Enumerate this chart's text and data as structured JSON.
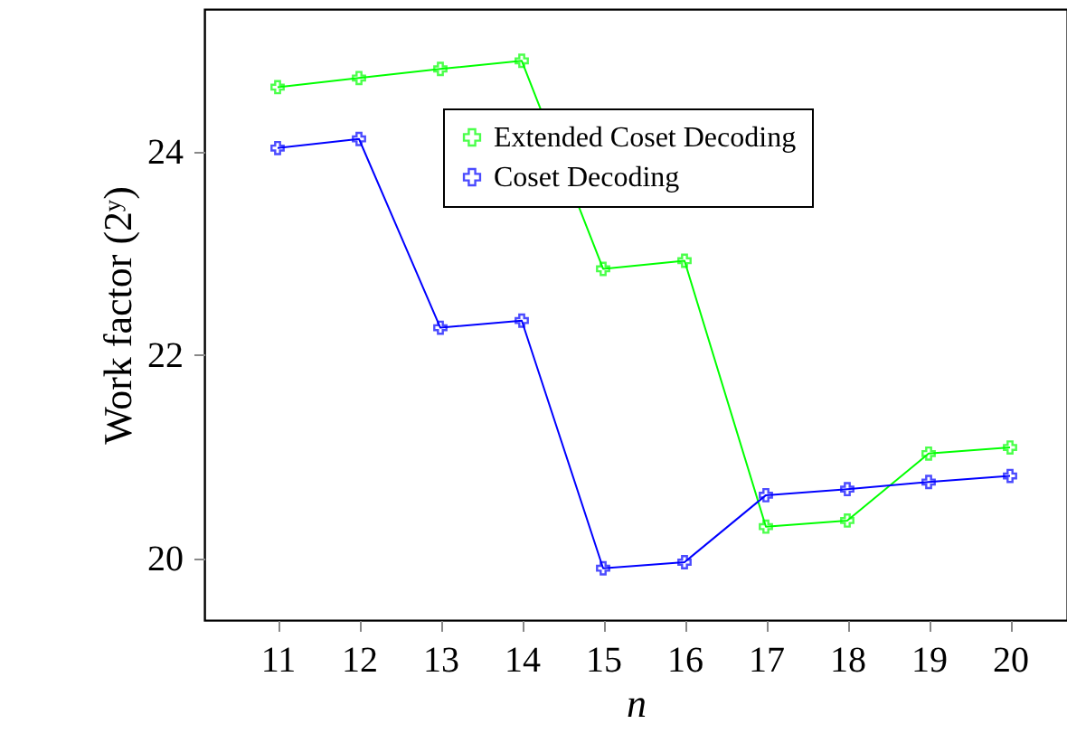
{
  "chart_data": {
    "type": "line",
    "xlabel": "n",
    "ylabel": "Work factor (2ʸ)",
    "x": [
      11,
      12,
      13,
      14,
      15,
      16,
      17,
      18,
      19,
      20
    ],
    "series": [
      {
        "name": "Extended Coset Decoding",
        "color": "#00ff00",
        "values": [
          24.64,
          24.73,
          24.82,
          24.9,
          22.85,
          22.93,
          20.31,
          20.37,
          21.03,
          21.09
        ]
      },
      {
        "name": "Coset Decoding",
        "color": "#0000ff",
        "values": [
          24.04,
          24.13,
          22.27,
          22.34,
          19.9,
          19.96,
          20.62,
          20.68,
          20.75,
          20.81
        ]
      }
    ],
    "xlim": [
      10.1,
      20.7
    ],
    "xticks": [
      11,
      12,
      13,
      14,
      15,
      16,
      17,
      18,
      19,
      20
    ],
    "ylim": [
      19.39,
      25.41
    ],
    "yticks": [
      20,
      22,
      24
    ],
    "grid": false,
    "legend": "top right",
    "marker": "cross",
    "line_style": "solid"
  }
}
